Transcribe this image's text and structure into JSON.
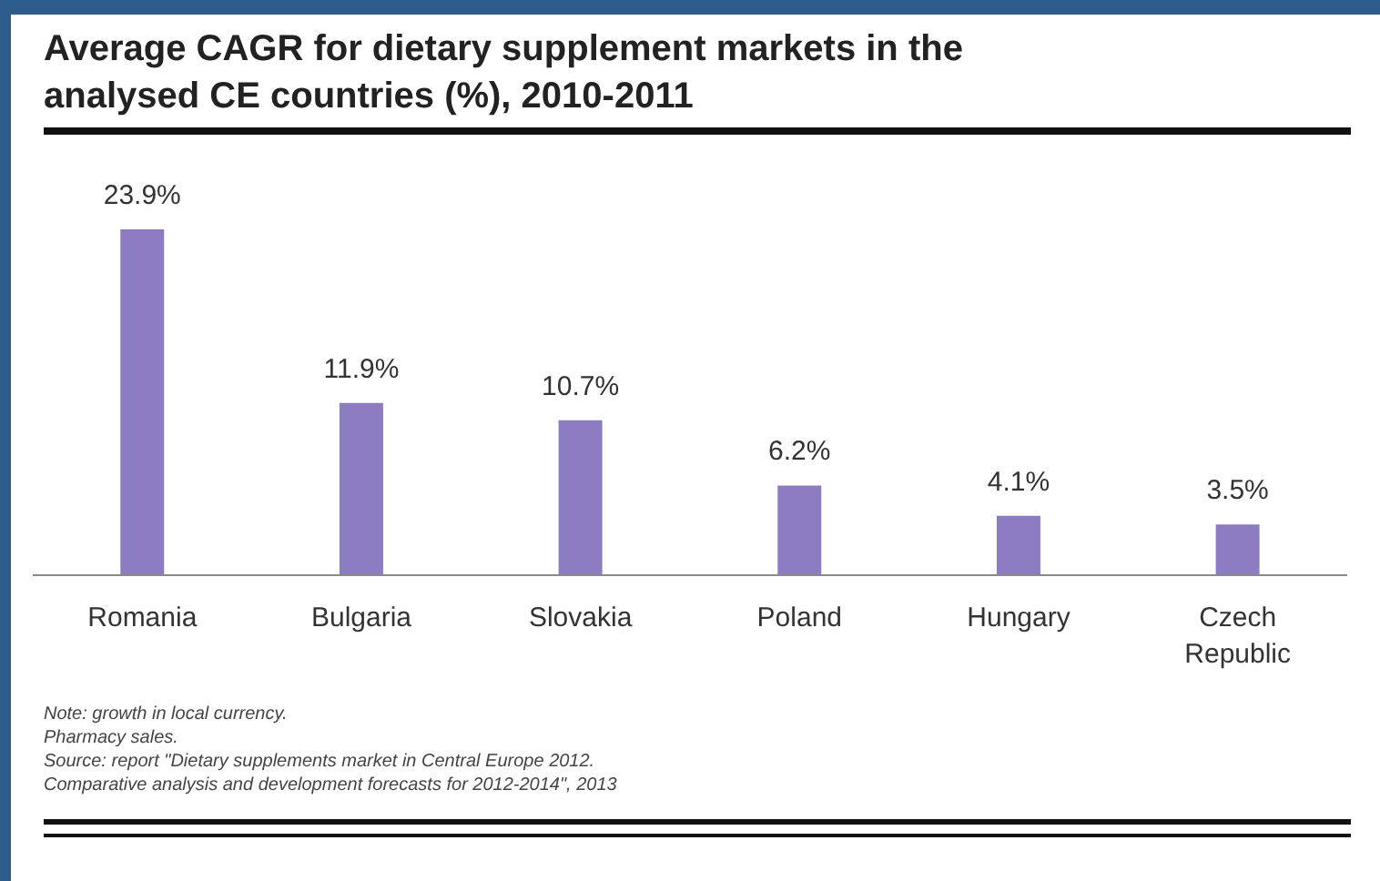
{
  "chart_data": {
    "type": "bar",
    "title": "Average CAGR for dietary supplement markets in the analysed CE countries (%), 2010-2011",
    "categories": [
      "Romania",
      "Bulgaria",
      "Slovakia",
      "Poland",
      "Hungary",
      "Czech Republic"
    ],
    "values": [
      23.9,
      11.9,
      10.7,
      6.2,
      4.1,
      3.5
    ],
    "value_labels": [
      "23.9%",
      "11.9%",
      "10.7%",
      "6.2%",
      "4.1%",
      "3.5%"
    ],
    "color": "#8e7cc3",
    "grid": false,
    "legend": false,
    "annotations": [
      "Note: growth in local currency.",
      "Pharmacy sales.",
      "Source: report \"Dietary supplements market in Central Europe 2012.",
      "Comparative analysis and development forecasts for 2012-2014\", 2013"
    ]
  }
}
